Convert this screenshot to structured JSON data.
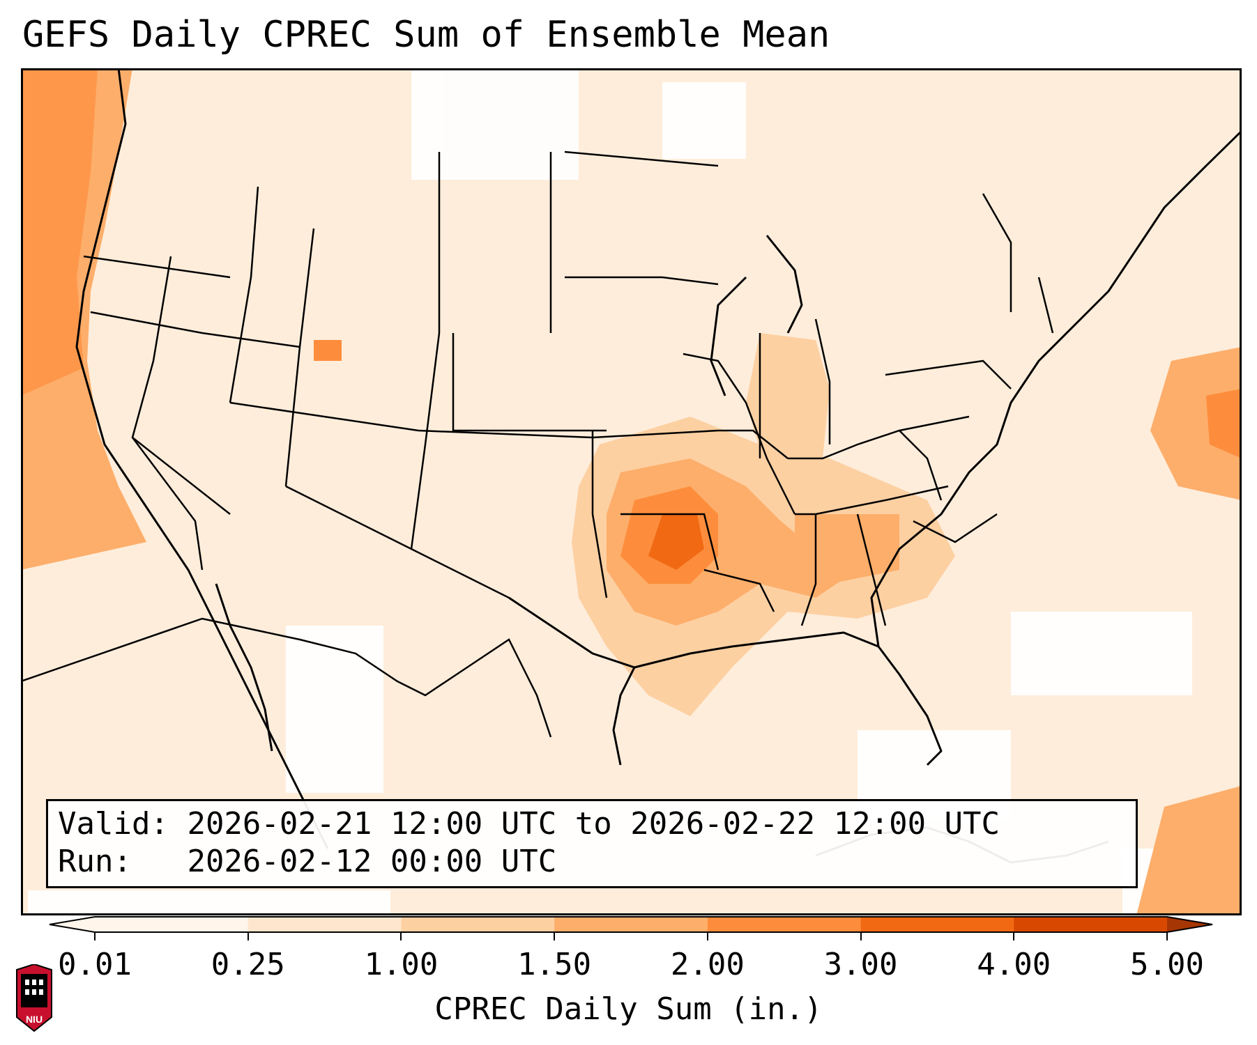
{
  "title": "GEFS Daily CPREC Sum of Ensemble Mean",
  "info": {
    "valid_label": "Valid:",
    "valid_value": "2026-02-21 12:00 UTC to 2026-02-22 12:00 UTC",
    "run_label": "Run:",
    "run_value": "2026-02-12 00:00 UTC"
  },
  "colorbar": {
    "label": "CPREC Daily Sum (in.)",
    "ticks": [
      "0.01",
      "0.25",
      "1.00",
      "1.50",
      "2.00",
      "3.00",
      "4.00",
      "5.00"
    ],
    "colors": [
      "#fff5eb",
      "#fee6ce",
      "#fdd0a2",
      "#fdae6b",
      "#fd8d3c",
      "#f16913",
      "#d94801",
      "#a63603"
    ],
    "extend": "both"
  },
  "logo": {
    "text": "NIU"
  },
  "colors": {
    "light": "#fff5eb",
    "medium": "#fdae6b",
    "strong": "#f16913",
    "dark": "#d94801"
  }
}
